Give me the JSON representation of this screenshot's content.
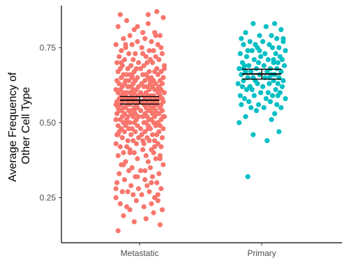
{
  "chart_data": {
    "type": "scatter",
    "subtype": "jitter-strip with mean and error bars",
    "ylabel_lines": [
      "Average Frequency of",
      "Other Cell Type"
    ],
    "xlabel": "",
    "categories": [
      "Metastatic",
      "Primary"
    ],
    "ylim": [
      0.1,
      0.89
    ],
    "yticks": [
      0.25,
      0.5,
      0.75
    ],
    "ytick_labels": [
      "0.25",
      "0.50",
      "0.75"
    ],
    "grid": false,
    "legend": "none",
    "colors": {
      "Metastatic": "#F8766D",
      "Primary": "#00BFC4",
      "summary": "#000000"
    },
    "series": [
      {
        "category": "Metastatic",
        "mean": 0.575,
        "ci_low": 0.562,
        "ci_high": 0.587,
        "jitter": [
          -0.18,
          0.16,
          -0.05,
          0.22,
          -0.12,
          0.08,
          -0.2,
          0.03,
          0.14,
          -0.09,
          0.19,
          -0.15,
          0.05,
          -0.02,
          0.11,
          -0.22,
          0.17,
          -0.07,
          0.02,
          0.2,
          -0.13,
          0.09,
          -0.17,
          0.13,
          -0.04,
          0.21,
          -0.1,
          0.06,
          -0.19,
          0.15,
          -0.06,
          0.1,
          -0.14,
          0.18,
          -0.01,
          0.07,
          -0.21,
          0.12,
          -0.08,
          0.04,
          -0.16,
          0.23,
          -0.03,
          0.16,
          -0.11,
          0.01,
          -0.18,
          0.2,
          -0.05,
          0.09,
          -0.2,
          0.14,
          -0.12,
          0.06,
          -0.09,
          0.17,
          -0.15,
          0.03,
          -0.02,
          0.22,
          -0.07,
          0.11,
          -0.17,
          0.08,
          -0.13,
          0.19,
          -0.04,
          0.13,
          -0.1,
          0.05,
          -0.21,
          0.15,
          -0.06,
          0.1,
          -0.14,
          0.02,
          -0.19,
          0.21,
          -0.08,
          0.07,
          -0.01,
          0.18,
          -0.16,
          0.12,
          -0.11,
          0.04,
          -0.22,
          0.16,
          -0.03,
          0.09,
          -0.18,
          0.14,
          -0.06,
          0.2,
          -0.12,
          0.06,
          -0.09,
          0.17,
          -0.15,
          0.01,
          -0.05,
          0.23,
          -0.2,
          0.11,
          -0.02,
          0.08,
          -0.13,
          0.19,
          -0.07,
          0.13,
          -0.17,
          0.03,
          -0.1,
          0.15,
          -0.04,
          0.21,
          -0.19,
          0.1,
          -0.14,
          0.05,
          -0.08,
          0.18,
          -0.21,
          0.07,
          -0.01,
          0.12,
          -0.16,
          0.22,
          -0.11,
          0.02,
          -0.06,
          0.16,
          -0.22,
          0.09,
          -0.03,
          0.14,
          -0.18,
          0.2,
          -0.12,
          0.04,
          -0.09,
          0.17,
          -0.15,
          0.11,
          -0.05,
          0.06,
          -0.2,
          0.19,
          -0.02,
          0.13,
          -0.13,
          0.08,
          -0.17,
          0.15,
          -0.07,
          0.01,
          -0.1,
          0.21,
          -0.19,
          0.1,
          -0.04,
          0.18,
          -0.14,
          0.05,
          -0.21,
          0.12,
          -0.08,
          0.16,
          -0.01,
          0.07,
          -0.16,
          0.23,
          -0.11,
          0.03,
          -0.06,
          0.14,
          -0.22,
          0.09,
          -0.03,
          0.2,
          -0.18,
          0.11,
          -0.12,
          0.04,
          -0.09,
          0.17,
          -0.15,
          0.06,
          -0.05,
          0.13,
          -0.2,
          0.19,
          -0.02,
          0.08,
          -0.13,
          0.15,
          -0.17,
          0.01,
          -0.07,
          0.22,
          -0.1,
          0.1,
          -0.19,
          0.18,
          -0.04,
          0.05,
          -0.14,
          0.12,
          -0.21,
          0.16,
          -0.08,
          0.02,
          -0.01,
          0.21,
          -0.16,
          0.07,
          -0.11,
          0.14,
          -0.06,
          0.09,
          -0.22,
          0.17,
          -0.03,
          0.04,
          -0.18,
          0.2,
          -0.12,
          0.11,
          -0.09,
          0.03,
          -0.15,
          0.13,
          -0.05,
          0.19,
          -0.2,
          0.06,
          -0.02,
          0.15,
          -0.13,
          0.08,
          -0.17,
          0.22,
          -0.07,
          0.1,
          -0.1,
          0.01,
          -0.19,
          0.18,
          -0.04,
          0.12,
          -0.14,
          0.05,
          -0.21,
          0.16,
          -0.08,
          0.07,
          -0.01,
          0.2,
          -0.16,
          0.09,
          -0.11,
          0.02,
          -0.06,
          0.14,
          -0.22,
          0.17,
          -0.03,
          0.11,
          -0.18,
          0.04,
          -0.12,
          0.21,
          -0.09,
          0.13,
          -0.15,
          0.06,
          -0.05,
          0.19,
          -0.2,
          0.08,
          -0.02,
          0.15,
          -0.13,
          0.03,
          -0.17,
          0.23,
          -0.07,
          0.1,
          -0.1,
          0.18
        ],
        "values": [
          0.86,
          0.87,
          0.81,
          0.85,
          0.84,
          0.83,
          0.82,
          0.8,
          0.8,
          0.79,
          0.79,
          0.78,
          0.78,
          0.77,
          0.77,
          0.76,
          0.76,
          0.76,
          0.75,
          0.75,
          0.75,
          0.74,
          0.74,
          0.74,
          0.73,
          0.73,
          0.73,
          0.72,
          0.72,
          0.72,
          0.71,
          0.71,
          0.71,
          0.71,
          0.7,
          0.7,
          0.7,
          0.7,
          0.69,
          0.69,
          0.69,
          0.69,
          0.68,
          0.68,
          0.68,
          0.68,
          0.68,
          0.67,
          0.67,
          0.67,
          0.67,
          0.67,
          0.66,
          0.66,
          0.66,
          0.66,
          0.66,
          0.66,
          0.65,
          0.65,
          0.65,
          0.65,
          0.65,
          0.65,
          0.64,
          0.64,
          0.64,
          0.64,
          0.64,
          0.64,
          0.64,
          0.63,
          0.63,
          0.63,
          0.63,
          0.63,
          0.63,
          0.63,
          0.62,
          0.62,
          0.62,
          0.62,
          0.62,
          0.62,
          0.62,
          0.62,
          0.61,
          0.61,
          0.61,
          0.61,
          0.61,
          0.61,
          0.61,
          0.61,
          0.6,
          0.6,
          0.6,
          0.6,
          0.6,
          0.6,
          0.6,
          0.6,
          0.6,
          0.59,
          0.59,
          0.59,
          0.59,
          0.59,
          0.59,
          0.59,
          0.59,
          0.59,
          0.58,
          0.58,
          0.58,
          0.58,
          0.58,
          0.58,
          0.58,
          0.58,
          0.58,
          0.58,
          0.57,
          0.57,
          0.57,
          0.57,
          0.57,
          0.57,
          0.57,
          0.57,
          0.57,
          0.57,
          0.56,
          0.56,
          0.56,
          0.56,
          0.56,
          0.56,
          0.56,
          0.56,
          0.56,
          0.56,
          0.55,
          0.55,
          0.55,
          0.55,
          0.55,
          0.55,
          0.55,
          0.55,
          0.55,
          0.54,
          0.54,
          0.54,
          0.54,
          0.54,
          0.54,
          0.54,
          0.54,
          0.54,
          0.53,
          0.53,
          0.53,
          0.53,
          0.53,
          0.53,
          0.53,
          0.53,
          0.52,
          0.52,
          0.52,
          0.52,
          0.52,
          0.52,
          0.52,
          0.52,
          0.51,
          0.51,
          0.51,
          0.51,
          0.51,
          0.51,
          0.51,
          0.5,
          0.5,
          0.5,
          0.5,
          0.5,
          0.5,
          0.5,
          0.49,
          0.49,
          0.49,
          0.49,
          0.49,
          0.49,
          0.48,
          0.48,
          0.48,
          0.48,
          0.48,
          0.48,
          0.47,
          0.47,
          0.47,
          0.47,
          0.47,
          0.46,
          0.46,
          0.46,
          0.46,
          0.46,
          0.45,
          0.45,
          0.45,
          0.45,
          0.44,
          0.44,
          0.44,
          0.44,
          0.43,
          0.43,
          0.43,
          0.43,
          0.42,
          0.42,
          0.42,
          0.41,
          0.41,
          0.41,
          0.4,
          0.4,
          0.4,
          0.39,
          0.39,
          0.39,
          0.38,
          0.38,
          0.37,
          0.37,
          0.36,
          0.36,
          0.35,
          0.35,
          0.34,
          0.34,
          0.33,
          0.33,
          0.32,
          0.32,
          0.31,
          0.31,
          0.3,
          0.3,
          0.29,
          0.29,
          0.28,
          0.28,
          0.27,
          0.27,
          0.27,
          0.26,
          0.26,
          0.25,
          0.25,
          0.24,
          0.24,
          0.23,
          0.23,
          0.22,
          0.22,
          0.21,
          0.21,
          0.2,
          0.19,
          0.18,
          0.17,
          0.16,
          0.14,
          0.86,
          0.82,
          0.79,
          0.76,
          0.73,
          0.7,
          0.68,
          0.66,
          0.64,
          0.62,
          0.6,
          0.58,
          0.56,
          0.54,
          0.52,
          0.5,
          0.48,
          0.46,
          0.44,
          0.42,
          0.4,
          0.38,
          0.36,
          0.34,
          0.32,
          0.3,
          0.28,
          0.26
        ]
      },
      {
        "category": "Primary",
        "mean": 0.662,
        "ci_low": 0.645,
        "ci_high": 0.678,
        "jitter": [
          -0.08,
          0.04,
          0.12,
          -0.15,
          0.18,
          -0.02,
          0.09,
          -0.19,
          0.14,
          0.01,
          -0.11,
          0.2,
          -0.06,
          0.07,
          -0.17,
          0.16,
          -0.04,
          0.1,
          -0.13,
          0.22,
          -0.09,
          0.03,
          -0.2,
          0.13,
          -0.01,
          0.17,
          -0.14,
          0.06,
          -0.07,
          0.19,
          -0.18,
          0.11,
          -0.03,
          0.15,
          -0.12,
          0.02,
          -0.16,
          0.21,
          -0.05,
          0.08,
          -0.21,
          0.14,
          -0.1,
          0.05,
          -0.15,
          0.18,
          -0.02,
          0.12,
          -0.19,
          0.09,
          -0.08,
          0.16,
          -0.13,
          0.03,
          -0.17,
          0.2,
          -0.06,
          0.11,
          -0.22,
          0.07,
          -0.04,
          0.15,
          -0.11,
          0.01,
          -0.18,
          0.19,
          -0.09,
          0.13,
          -0.14,
          0.06,
          -0.01,
          0.17,
          -0.2,
          0.1,
          -0.07,
          0.04,
          -0.16,
          0.22,
          -0.12,
          0.08,
          -0.03,
          0.14,
          -0.19,
          0.02,
          -0.1,
          0.18,
          -0.05,
          0.12,
          -0.15,
          0.09,
          -0.21,
          0.16,
          -0.08,
          0.05,
          -0.13,
          0.2,
          -0.02,
          0.11,
          -0.17,
          0.07,
          -0.11,
          0.15
        ],
        "values": [
          0.83,
          0.82,
          0.83,
          0.8,
          0.81,
          0.79,
          0.79,
          0.78,
          0.78,
          0.77,
          0.77,
          0.77,
          0.76,
          0.76,
          0.76,
          0.75,
          0.75,
          0.75,
          0.74,
          0.74,
          0.74,
          0.73,
          0.73,
          0.73,
          0.72,
          0.72,
          0.72,
          0.71,
          0.71,
          0.71,
          0.7,
          0.7,
          0.7,
          0.7,
          0.69,
          0.69,
          0.69,
          0.69,
          0.68,
          0.68,
          0.68,
          0.68,
          0.67,
          0.67,
          0.67,
          0.67,
          0.66,
          0.66,
          0.66,
          0.66,
          0.65,
          0.65,
          0.65,
          0.65,
          0.64,
          0.64,
          0.64,
          0.64,
          0.63,
          0.63,
          0.63,
          0.63,
          0.62,
          0.62,
          0.62,
          0.62,
          0.61,
          0.61,
          0.61,
          0.6,
          0.6,
          0.6,
          0.59,
          0.59,
          0.59,
          0.58,
          0.58,
          0.58,
          0.57,
          0.57,
          0.56,
          0.56,
          0.56,
          0.55,
          0.55,
          0.55,
          0.54,
          0.53,
          0.52,
          0.51,
          0.5,
          0.47,
          0.46,
          0.44,
          0.32,
          0.78,
          0.74,
          0.71,
          0.68,
          0.65,
          0.62,
          0.59
        ]
      }
    ]
  }
}
